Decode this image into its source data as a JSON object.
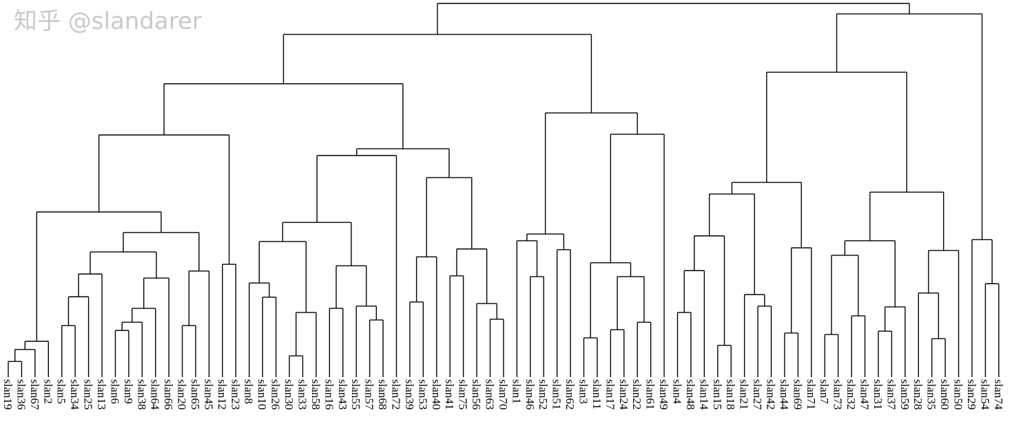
{
  "dendrogram": {
    "type": "dendrogram",
    "orientation": "top-down",
    "axes_shown": false,
    "line_color": "#000000",
    "height_scale_note": "relative merge heights, root = 100",
    "leaves": [
      "slan19",
      "slan36",
      "slan67",
      "slan2",
      "slan5",
      "slan34",
      "slan25",
      "slan13",
      "slan6",
      "slan9",
      "slan38",
      "slan64",
      "slan66",
      "slan20",
      "slan65",
      "slan45",
      "slan12",
      "slan23",
      "slan8",
      "slan10",
      "slan26",
      "slan30",
      "slan33",
      "slan58",
      "slan16",
      "slan43",
      "slan55",
      "slan57",
      "slan68",
      "slan72",
      "slan39",
      "slan53",
      "slan40",
      "slan41",
      "slan75",
      "slan56",
      "slan63",
      "slan70",
      "slan1",
      "slan46",
      "slan52",
      "slan51",
      "slan62",
      "slan3",
      "slan11",
      "slan17",
      "slan24",
      "slan22",
      "slan61",
      "slan49",
      "slan4",
      "slan48",
      "slan14",
      "slan15",
      "slan18",
      "slan21",
      "slan27",
      "slan42",
      "slan44",
      "slan69",
      "slan71",
      "slan7",
      "slan73",
      "slan32",
      "slan47",
      "slan31",
      "slan37",
      "slan59",
      "slan28",
      "slan35",
      "slan60",
      "slan50",
      "slan29",
      "slan54",
      "slan74"
    ],
    "tree": [
      100,
      [
        91.7,
        [
          78.5,
          [
            64.8,
            [
              44.2,
              [
                9.6,
                [
                  7.4,
                  [
                    4.2,
                    0,
                    1
                  ],
                  2
                ],
                3
              ],
              [
                38.7,
                [
                  33.5,
                  [
                    27.6,
                    [
                      21.5,
                      [
                        13.8,
                        4,
                        5
                      ],
                      6
                    ],
                    7
                  ],
                  [
                    26.5,
                    [
                      18.4,
                      [
                        14.7,
                        [
                          12.5,
                          8,
                          9
                        ],
                        10
                      ],
                      11
                    ],
                    12
                  ]
                ],
                [
                  28.4,
                  [
                    13.8,
                    13,
                    14
                  ],
                  15
                ]
              ]
            ],
            [
              30.2,
              16,
              17
            ]
          ],
          [
            61.1,
            [
              59.3,
              [
                41.4,
                [
                  36.3,
                  [
                    25.2,
                    18,
                    [
                      21.4,
                      19,
                      20
                    ]
                  ],
                  [
                    17.3,
                    [
                      5.7,
                      21,
                      22
                    ],
                    23
                  ]
                ],
                [
                  29.8,
                  [
                    18.4,
                    24,
                    25
                  ],
                  [
                    19.0,
                    26,
                    [
                      15.3,
                      27,
                      28
                    ]
                  ]
                ]
              ],
              29
            ],
            [
              53.4,
              [
                32.2,
                [
                  20.1,
                  30,
                  31
                ],
                32
              ],
              [
                34.3,
                [
                  27.1,
                  33,
                  34
                ],
                [
                  19.7,
                  35,
                  [
                    15.5,
                    36,
                    37
                  ]
                ]
              ]
            ]
          ]
        ],
        [
          70.7,
          [
            38.3,
            [
              36.5,
              38,
              [
                26.9,
                39,
                40
              ]
            ],
            [
              34.1,
              41,
              42
            ]
          ],
          [
            65.0,
            [
              30.6,
              [
                10.5,
                43,
                44
              ],
              [
                26.9,
                [
                  12.7,
                  45,
                  46
                ],
                [
                  14.7,
                  47,
                  48
                ]
              ]
            ],
            49
          ]
        ]
      ],
      [
        97.2,
        [
          81.6,
          [
            52.1,
            [
              49.0,
              [
                37.8,
                [
                  28.5,
                  [
                    17.3,
                    50,
                    51
                  ],
                  52
                ],
                [
                  8.5,
                  53,
                  54
                ]
              ],
              [
                22.1,
                55,
                [
                  19.0,
                  56,
                  57
                ]
              ]
            ],
            [
              34.6,
              [
                11.8,
                58,
                59
              ],
              60
            ]
          ],
          [
            49.5,
            [
              36.5,
              [
                32.6,
                [
                  11.4,
                  61,
                  62
                ],
                [
                  16.4,
                  63,
                  64
                ]
              ],
              [
                18.8,
                [
                  12.3,
                  65,
                  66
                ],
                67
              ]
            ],
            [
              33.9,
              [
                22.5,
                68,
                [
                  10.3,
                  69,
                  70
                ]
              ],
              71
            ]
          ]
        ],
        [
          36.8,
          72,
          [
            25.0,
            73,
            74
          ]
        ]
      ]
    ]
  },
  "watermark": {
    "text": "知乎 @slandarer"
  }
}
